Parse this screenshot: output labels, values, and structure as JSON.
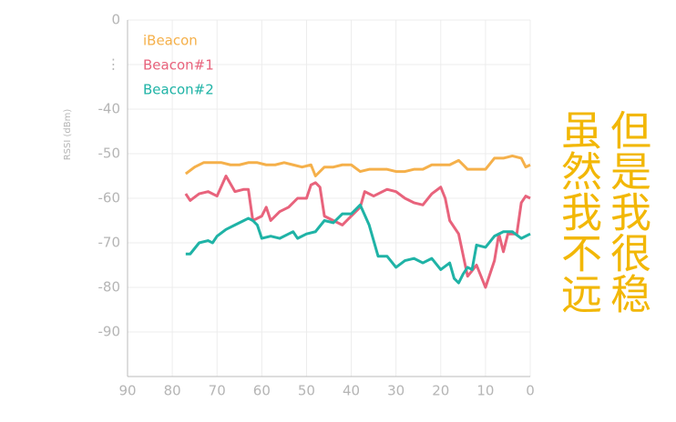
{
  "chart_data": {
    "type": "line",
    "y_label": "RSSI (dBm)",
    "xlim": [
      90,
      0
    ],
    "xticks": [
      90,
      80,
      70,
      60,
      50,
      40,
      30,
      20,
      10,
      0
    ],
    "ylim": [
      -100,
      -20
    ],
    "yticks": [
      {
        "value": -20,
        "label": "0"
      },
      {
        "value": -30,
        "label": "⋮"
      },
      -40,
      -50,
      -60,
      -70,
      -80,
      -90
    ],
    "grid": true,
    "legend": "top-left",
    "series": [
      {
        "name": "iBeacon",
        "color": "#f5b04a",
        "x": [
          77,
          75,
          73,
          71,
          69,
          67,
          65,
          63,
          61,
          59,
          57,
          55,
          53,
          51,
          49,
          48,
          46,
          44,
          42,
          40,
          38,
          36,
          34,
          32,
          30,
          28,
          26,
          24,
          22,
          20,
          18,
          16,
          14,
          12,
          10,
          8,
          6,
          4,
          2,
          1,
          0
        ],
        "values": [
          -54.5,
          -53,
          -52,
          -52,
          -52,
          -52.5,
          -52.5,
          -52,
          -52,
          -52.5,
          -52.5,
          -52,
          -52.5,
          -53,
          -52.5,
          -55,
          -53,
          -53,
          -52.5,
          -52.5,
          -54,
          -53.5,
          -53.5,
          -53.5,
          -54,
          -54,
          -53.5,
          -53.5,
          -52.5,
          -52.5,
          -52.5,
          -51.5,
          -53.5,
          -53.5,
          -53.5,
          -51,
          -51,
          -50.5,
          -51,
          -53,
          -52.5
        ]
      },
      {
        "name": "Beacon#1",
        "color": "#e8637c",
        "x": [
          77,
          76,
          74,
          72,
          70,
          68,
          66,
          64,
          63,
          62,
          60,
          59,
          58,
          56,
          54,
          52,
          50,
          49,
          48,
          47,
          46,
          44,
          42,
          40,
          38,
          37,
          35,
          32,
          30,
          28,
          26,
          24,
          22,
          20,
          19,
          18,
          16,
          14,
          12,
          10,
          8,
          7,
          6,
          5,
          3,
          2,
          1,
          0
        ],
        "values": [
          -59,
          -60.5,
          -59,
          -58.5,
          -59.5,
          -55,
          -58.5,
          -58,
          -58,
          -65,
          -64,
          -62,
          -65,
          -63,
          -62,
          -60,
          -60,
          -57,
          -56.5,
          -57.5,
          -64,
          -65,
          -66,
          -64,
          -62,
          -58.5,
          -59.5,
          -58,
          -58.5,
          -60,
          -61,
          -61.5,
          -59,
          -57.5,
          -60,
          -65,
          -68,
          -77.5,
          -75,
          -80,
          -74,
          -68,
          -72,
          -68,
          -68,
          -61,
          -59.5,
          -60
        ]
      },
      {
        "name": "Beacon#2",
        "color": "#1fb3a6",
        "x": [
          77,
          76,
          74,
          72,
          71,
          70,
          68,
          66,
          64,
          63,
          62,
          61,
          60,
          58,
          56,
          54,
          53,
          52,
          50,
          48,
          46,
          44,
          42,
          40,
          38,
          36,
          34,
          32,
          30,
          28,
          26,
          24,
          22,
          20,
          18,
          17,
          16,
          15,
          14,
          13,
          12,
          10,
          8,
          6,
          4,
          2,
          0
        ],
        "values": [
          -72.5,
          -72.5,
          -70,
          -69.5,
          -70,
          -68.5,
          -67,
          -66,
          -65,
          -64.5,
          -65,
          -66,
          -69,
          -68.5,
          -69,
          -68,
          -67.5,
          -69,
          -68,
          -67.5,
          -65,
          -65.5,
          -63.5,
          -63.5,
          -61.5,
          -66,
          -73,
          -73,
          -75.5,
          -74,
          -73.5,
          -74.5,
          -73.5,
          -76,
          -74.5,
          -78,
          -79,
          -77,
          -75.5,
          -76,
          -70.5,
          -71,
          -68.5,
          -67.5,
          -67.5,
          -69,
          -68
        ]
      }
    ],
    "annotations": [
      "虽然我不远",
      "但是我很稳"
    ],
    "annotation_color": "#f2b705"
  }
}
